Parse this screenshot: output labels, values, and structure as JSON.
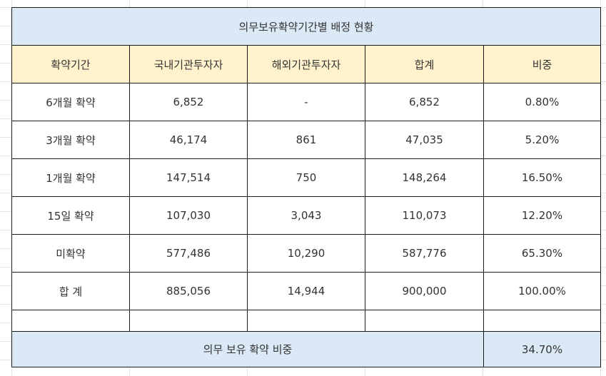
{
  "table": {
    "title": "의무보유확약기간별 배정 현황",
    "headers": [
      "확약기간",
      "국내기관투자자",
      "해외기관투자자",
      "합계",
      "비중"
    ],
    "rows": [
      [
        "6개월 확약",
        "6,852",
        "-",
        "6,852",
        "0.80%"
      ],
      [
        "3개월 확약",
        "46,174",
        "861",
        "47,035",
        "5.20%"
      ],
      [
        "1개월 확약",
        "147,514",
        "750",
        "148,264",
        "16.50%"
      ],
      [
        "15일 확약",
        "107,030",
        "3,043",
        "110,073",
        "12.20%"
      ],
      [
        "미확약",
        "577,486",
        "10,290",
        "587,776",
        "65.30%"
      ],
      [
        "합 계",
        "885,056",
        "14,944",
        "900,000",
        "100.00%"
      ]
    ],
    "summary": {
      "label": "의무 보유 확약 비중",
      "value": "34.70%"
    }
  },
  "colors": {
    "title_background": "#dbe9f6",
    "header_background": "#fff2cc",
    "summary_background": "#dbe9f6",
    "border": "#1a1a1a"
  }
}
